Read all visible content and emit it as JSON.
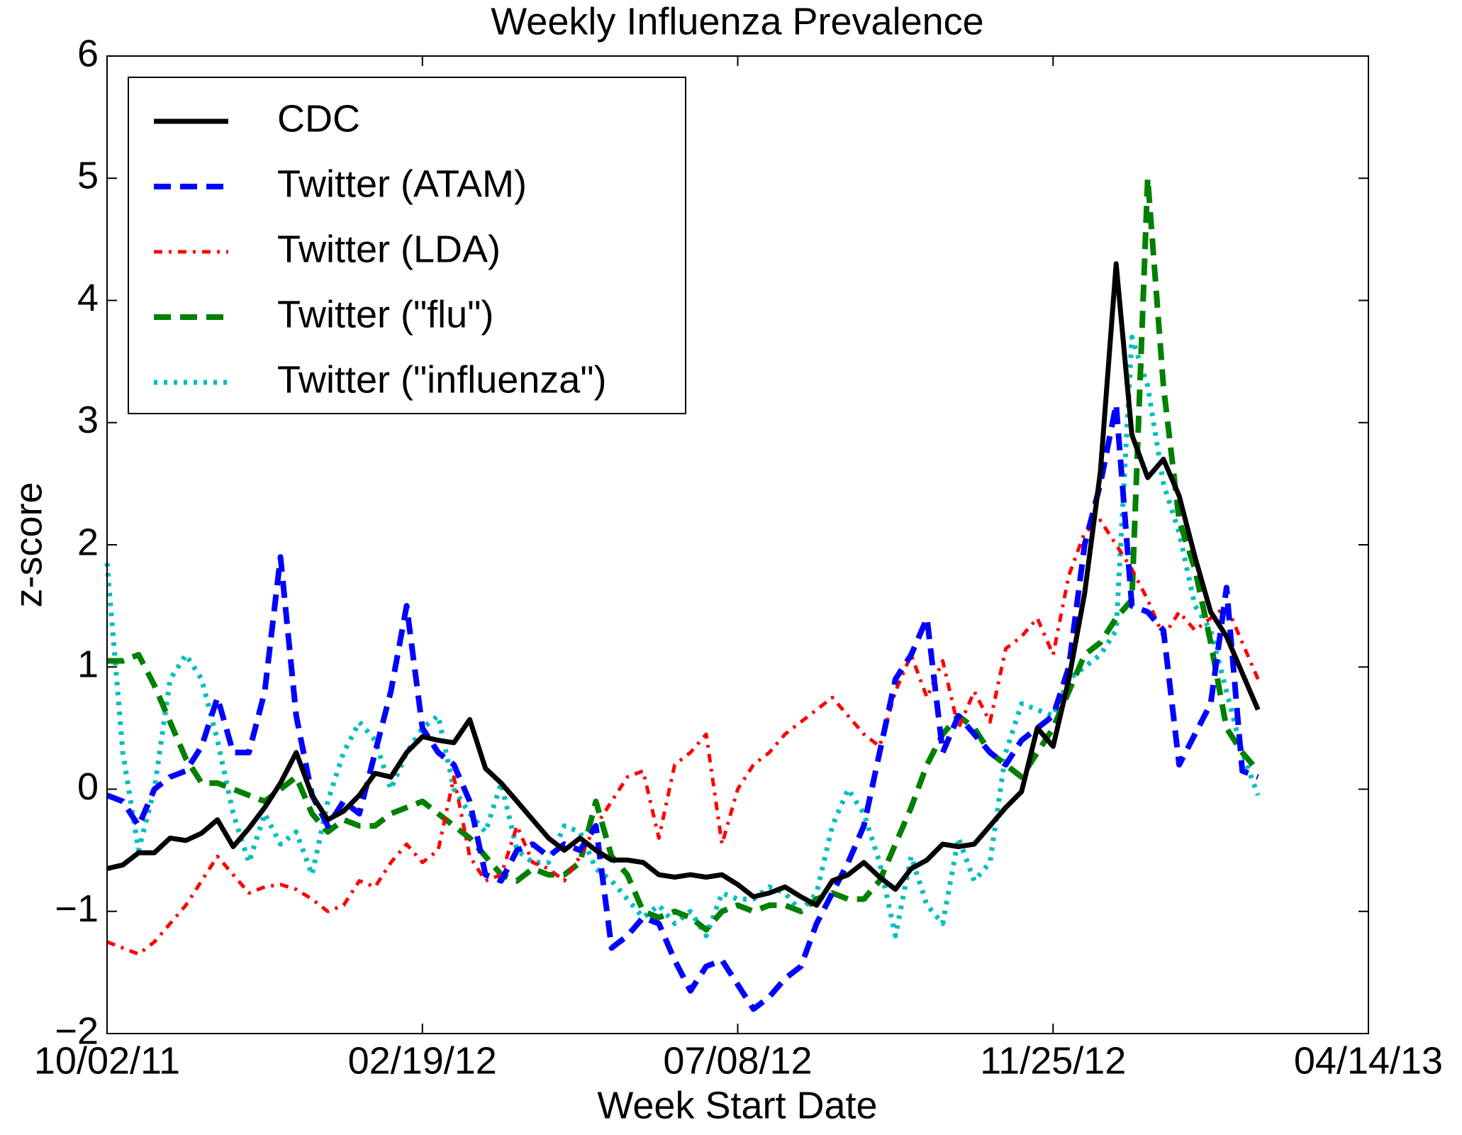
{
  "chart_data": {
    "type": "line",
    "title": "Weekly Influenza Prevalence",
    "xlabel": "Week Start Date",
    "ylabel": "z-score",
    "x": [
      "10/02/11",
      "10/09/11",
      "10/16/11",
      "10/23/11",
      "10/30/11",
      "11/06/11",
      "11/13/11",
      "11/20/11",
      "11/27/11",
      "12/04/11",
      "12/11/11",
      "12/18/11",
      "12/25/11",
      "01/01/12",
      "01/08/12",
      "01/15/12",
      "01/22/12",
      "01/29/12",
      "02/05/12",
      "02/12/12",
      "02/19/12",
      "02/26/12",
      "03/04/12",
      "03/11/12",
      "03/18/12",
      "03/25/12",
      "04/01/12",
      "04/08/12",
      "04/15/12",
      "04/22/12",
      "04/29/12",
      "05/06/12",
      "05/13/12",
      "05/20/12",
      "05/27/12",
      "06/03/12",
      "06/10/12",
      "06/17/12",
      "06/24/12",
      "07/01/12",
      "07/08/12",
      "07/15/12",
      "07/22/12",
      "07/29/12",
      "08/05/12",
      "08/12/12",
      "08/19/12",
      "08/26/12",
      "09/02/12",
      "09/09/12",
      "09/16/12",
      "09/23/12",
      "09/30/12",
      "10/07/12",
      "10/14/12",
      "10/21/12",
      "10/28/12",
      "11/04/12",
      "11/11/12",
      "11/18/12",
      "11/25/12",
      "12/02/12",
      "12/09/12",
      "12/16/12",
      "12/23/12",
      "12/30/12",
      "01/06/13",
      "01/13/13",
      "01/20/13",
      "01/27/13",
      "02/03/13",
      "02/10/13",
      "02/17/13",
      "02/24/13"
    ],
    "series": [
      {
        "name": "CDC",
        "color": "#000000",
        "style": "solid",
        "values": [
          -0.65,
          -0.62,
          -0.52,
          -0.52,
          -0.4,
          -0.42,
          -0.36,
          -0.25,
          -0.47,
          -0.32,
          -0.15,
          0.05,
          0.3,
          -0.05,
          -0.25,
          -0.18,
          -0.05,
          0.13,
          0.1,
          0.3,
          0.43,
          0.4,
          0.38,
          0.57,
          0.17,
          0.05,
          -0.1,
          -0.25,
          -0.4,
          -0.5,
          -0.4,
          -0.5,
          -0.58,
          -0.58,
          -0.6,
          -0.7,
          -0.72,
          -0.7,
          -0.72,
          -0.7,
          -0.78,
          -0.88,
          -0.85,
          -0.8,
          -0.88,
          -0.95,
          -0.75,
          -0.7,
          -0.6,
          -0.72,
          -0.82,
          -0.65,
          -0.58,
          -0.45,
          -0.47,
          -0.45,
          -0.3,
          -0.15,
          -0.02,
          0.5,
          0.35,
          0.9,
          1.6,
          2.6,
          4.3,
          2.9,
          2.55,
          2.7,
          2.4,
          1.9,
          1.45,
          1.25,
          0.95,
          0.65
        ]
      },
      {
        "name": "Twitter (ATAM)",
        "color": "#0000ff",
        "style": "dashed",
        "values": [
          -0.05,
          -0.1,
          -0.3,
          0.0,
          0.1,
          0.15,
          0.35,
          0.75,
          0.3,
          0.3,
          0.8,
          1.9,
          0.6,
          -0.05,
          -0.3,
          -0.1,
          -0.2,
          0.3,
          0.8,
          1.5,
          0.5,
          0.3,
          0.2,
          -0.1,
          -0.7,
          -0.75,
          -0.5,
          -0.45,
          -0.55,
          -0.45,
          -0.5,
          -0.3,
          -1.3,
          -1.2,
          -1.05,
          -1.1,
          -1.4,
          -1.65,
          -1.45,
          -1.4,
          -1.6,
          -1.8,
          -1.7,
          -1.55,
          -1.45,
          -1.1,
          -0.85,
          -0.6,
          -0.3,
          0.3,
          0.9,
          1.1,
          1.4,
          0.3,
          0.6,
          0.45,
          0.3,
          0.2,
          0.4,
          0.5,
          0.6,
          1.0,
          2.0,
          2.5,
          3.15,
          1.5,
          1.45,
          1.3,
          0.2,
          0.45,
          0.7,
          1.65,
          0.15,
          0.1
        ]
      },
      {
        "name": "Twitter (LDA)",
        "color": "#ff0000",
        "style": "dashdot",
        "values": [
          -1.25,
          -1.3,
          -1.35,
          -1.25,
          -1.1,
          -0.95,
          -0.75,
          -0.55,
          -0.7,
          -0.85,
          -0.8,
          -0.78,
          -0.82,
          -0.9,
          -1.0,
          -0.95,
          -0.75,
          -0.8,
          -0.6,
          -0.45,
          -0.6,
          -0.5,
          0.1,
          -0.55,
          -0.75,
          -0.7,
          -0.3,
          -0.6,
          -0.65,
          -0.75,
          -0.55,
          -0.3,
          -0.1,
          0.1,
          0.15,
          -0.4,
          0.2,
          0.3,
          0.45,
          -0.45,
          0.0,
          0.2,
          0.3,
          0.45,
          0.55,
          0.65,
          0.75,
          0.6,
          0.45,
          0.35,
          0.8,
          1.1,
          0.75,
          1.05,
          0.5,
          0.8,
          0.55,
          1.15,
          1.25,
          1.4,
          1.1,
          1.75,
          2.1,
          2.2,
          2.0,
          1.8,
          1.55,
          1.25,
          1.45,
          1.3,
          1.4,
          1.5,
          1.2,
          0.9
        ]
      },
      {
        "name": "Twitter (\"flu\")",
        "color": "#008000",
        "style": "dashed",
        "values": [
          1.05,
          1.05,
          1.1,
          0.85,
          0.55,
          0.25,
          0.05,
          0.05,
          0.0,
          -0.05,
          -0.1,
          0.0,
          0.1,
          -0.2,
          -0.35,
          -0.25,
          -0.3,
          -0.3,
          -0.2,
          -0.15,
          -0.1,
          -0.2,
          -0.3,
          -0.4,
          -0.55,
          -0.7,
          -0.75,
          -0.65,
          -0.7,
          -0.7,
          -0.6,
          -0.1,
          -0.55,
          -0.7,
          -1.0,
          -1.05,
          -1.0,
          -1.05,
          -1.15,
          -1.0,
          -0.95,
          -1.0,
          -0.95,
          -0.95,
          -1.0,
          -0.9,
          -0.85,
          -0.9,
          -0.9,
          -0.75,
          -0.45,
          -0.15,
          0.2,
          0.45,
          0.6,
          0.5,
          0.3,
          0.2,
          0.1,
          0.3,
          0.5,
          0.8,
          1.1,
          1.2,
          1.4,
          1.55,
          5.0,
          3.3,
          2.2,
          1.8,
          1.2,
          0.5,
          0.3,
          0.15
        ]
      },
      {
        "name": "Twitter (\"influenza\")",
        "color": "#00bfbf",
        "style": "dotted",
        "values": [
          1.85,
          0.3,
          -0.5,
          0.0,
          0.9,
          1.1,
          0.9,
          0.4,
          -0.2,
          -0.6,
          -0.2,
          -0.45,
          -0.35,
          -0.7,
          -0.1,
          0.3,
          0.55,
          0.4,
          0.0,
          0.3,
          0.5,
          0.6,
          0.0,
          -0.2,
          -0.35,
          0.05,
          -0.5,
          -0.6,
          -0.6,
          -0.3,
          -0.35,
          -0.65,
          -0.75,
          -0.9,
          -1.05,
          -0.95,
          -1.1,
          -1.0,
          -1.2,
          -0.85,
          -0.9,
          -0.9,
          -0.8,
          -0.85,
          -1.0,
          -0.85,
          -0.3,
          0.0,
          -0.2,
          -0.6,
          -1.2,
          -0.55,
          -0.95,
          -1.1,
          -0.4,
          -0.75,
          -0.6,
          0.3,
          0.7,
          0.65,
          0.6,
          0.9,
          1.0,
          1.1,
          1.3,
          3.7,
          3.3,
          2.5,
          2.1,
          1.5,
          1.3,
          0.8,
          0.3,
          -0.05
        ]
      }
    ],
    "xlim": [
      "10/02/11",
      "04/14/13"
    ],
    "xticks": [
      "10/02/11",
      "02/19/12",
      "07/08/12",
      "11/25/12",
      "04/14/13"
    ],
    "ylim": [
      -2,
      6
    ],
    "yticks": [
      {
        "value": -2,
        "label": "−2"
      },
      {
        "value": -1,
        "label": "−1"
      },
      0,
      1,
      2,
      3,
      4,
      5,
      6
    ],
    "grid": false,
    "legend": "upper left"
  }
}
